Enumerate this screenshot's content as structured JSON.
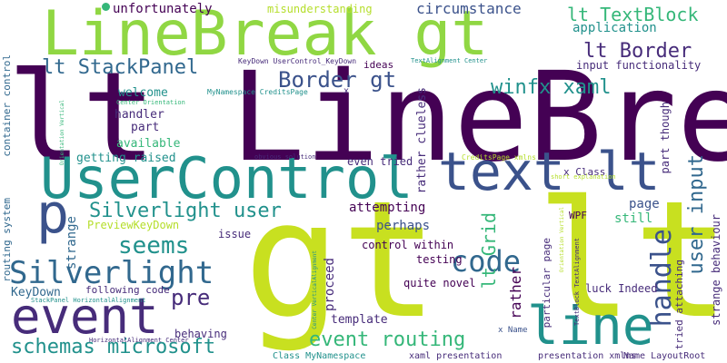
{
  "palette": {
    "dark_purple": "#440154",
    "purple": "#472c7a",
    "indigo": "#3b528b",
    "blue": "#31688e",
    "teal": "#21918c",
    "green": "#35b779",
    "light_green": "#90d743",
    "lime": "#c8e020",
    "yellow_green": "#b5de2b"
  },
  "words": [
    {
      "text": "lt LineBreak"
    },
    {
      "text": "gt lt"
    },
    {
      "text": "LineBreak gt"
    },
    {
      "text": "UserControl"
    },
    {
      "text": "text lt"
    },
    {
      "text": "event"
    },
    {
      "text": "line"
    },
    {
      "text": "p"
    },
    {
      "text": "Silverlight"
    },
    {
      "text": "code"
    },
    {
      "text": "handle"
    },
    {
      "text": "user input"
    },
    {
      "text": "seems"
    },
    {
      "text": "schemas microsoft"
    },
    {
      "text": "Silverlight user"
    },
    {
      "text": "event routing"
    },
    {
      "text": "lt StackPanel"
    },
    {
      "text": "Border gt"
    },
    {
      "text": "winfx xaml"
    },
    {
      "text": "lt Border"
    },
    {
      "text": "lt TextBlock"
    },
    {
      "text": "lt Grid"
    },
    {
      "text": "pre"
    },
    {
      "text": "circumstance"
    },
    {
      "text": "unfortunately"
    },
    {
      "text": "misunderstanding"
    },
    {
      "text": "application"
    },
    {
      "text": "input functionality"
    },
    {
      "text": "ideas"
    },
    {
      "text": "welcome"
    },
    {
      "text": "handler"
    },
    {
      "text": "part"
    },
    {
      "text": "available"
    },
    {
      "text": "getting raised"
    },
    {
      "text": "even tried"
    },
    {
      "text": "attempting"
    },
    {
      "text": "perhaps"
    },
    {
      "text": "strange"
    },
    {
      "text": "PreviewKeyDown"
    },
    {
      "text": "issue"
    },
    {
      "text": "page"
    },
    {
      "text": "still"
    },
    {
      "text": "control within"
    },
    {
      "text": "testing"
    },
    {
      "text": "quite novel"
    },
    {
      "text": "KeyDown"
    },
    {
      "text": "following code"
    },
    {
      "text": "behaving"
    },
    {
      "text": "template"
    },
    {
      "text": "proceed"
    },
    {
      "text": "rather"
    },
    {
      "text": "rather clueless"
    },
    {
      "text": "luck Indeed"
    },
    {
      "text": "WPF"
    },
    {
      "text": "tried attaching"
    },
    {
      "text": "strange behaviour"
    },
    {
      "text": "part though"
    },
    {
      "text": "particular page"
    },
    {
      "text": "container control"
    },
    {
      "text": "routing system"
    },
    {
      "text": "x Class"
    },
    {
      "text": "x"
    },
    {
      "text": "x Name"
    },
    {
      "text": "KeyDown UserControl_KeyDown"
    },
    {
      "text": "TextAlignment Center"
    },
    {
      "text": "MyNamespace CreditsPage"
    },
    {
      "text": "Center Orientation"
    },
    {
      "text": "Orientation Vertical"
    },
    {
      "text": "obvious solution"
    },
    {
      "text": "CreditsPage xmlns"
    },
    {
      "text": "short explanation"
    },
    {
      "text": "TextBlock TextAlignment"
    },
    {
      "text": "Orientation Vertical"
    },
    {
      "text": "Center VerticalAlignment"
    },
    {
      "text": "StackPanel HorizontalAlignment"
    },
    {
      "text": "HorizontalAlignment Center"
    },
    {
      "text": "Class MyNamespace"
    },
    {
      "text": "xaml presentation"
    },
    {
      "text": "presentation xmlns"
    },
    {
      "text": "Name LayoutRoot"
    }
  ]
}
